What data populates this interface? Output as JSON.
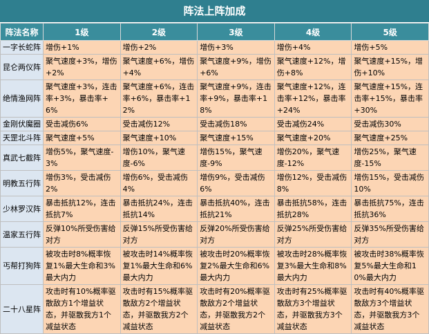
{
  "title": "阵法上阵加成",
  "table": {
    "header": [
      "阵法名称",
      "1级",
      "2级",
      "3级",
      "4级",
      "5级"
    ],
    "rows": [
      [
        "一字长蛇阵",
        "增伤+1%",
        "增伤+2%",
        "增伤+3%",
        "增伤+4%",
        "增伤+5%"
      ],
      [
        "昆仑两仪阵",
        "聚气速度+3%，增伤+2%",
        "聚气速度+6%，增伤+4%",
        "聚气速度+9%，增伤+6%",
        "聚气速度+12%，增伤+8%",
        "聚气速度+15%，增伤+10%"
      ],
      [
        "绝情渔网阵",
        "聚气速度+3%，连击率+3%，暴击率+6%",
        "聚气速度+6%，连击率+6%，暴击率+12%",
        "聚气速度+9%，连击率+9%，暴击率+18%",
        "聚气速度+12%，连击率+12%，暴击率+24%",
        "聚气速度+15%，连击率+15%，暴击率+30%"
      ],
      [
        "金刚伏魔圈",
        "受击减伤6%",
        "受击减伤12%",
        "受击减伤18%",
        "受击减伤24%",
        "受击减伤30%"
      ],
      [
        "天罡北斗阵",
        "聚气速度+5%",
        "聚气速度+10%",
        "聚气速度+15%",
        "聚气速度+20%",
        "聚气速度+25%"
      ],
      [
        "真武七截阵",
        "增伤5%，聚气速度-3%",
        "增伤10%，聚气速度-6%",
        "增伤15%，聚气速度-9%",
        "增伤20%，聚气速度-12%",
        "增伤25%，聚气速度-15%"
      ],
      [
        "明教五行阵",
        "增伤3%，受击减伤2%",
        "增伤6%，受击减伤4%",
        "增伤9%，受击减伤6%",
        "增伤12%，受击减伤8%",
        "增伤15%，受击减伤10%"
      ],
      [
        "少林罗汉阵",
        "暴击抵抗12%，连击抵抗7%",
        "暴击抵抗24%，连击抵抗14%",
        "暴击抵抗40%，连击抵抗21%",
        "暴击抵抗58%，连击抵抗28%",
        "暴击抵抗75%，连击抵抗36%"
      ],
      [
        "温家五行阵",
        "反弹10%所受伤害给对方",
        "反弹15%所受伤害给对方",
        "反弹20%所受伤害给对方",
        "反弹25%所受伤害给对方",
        "反弹35%所受伤害给对方"
      ],
      [
        "丐帮打狗阵",
        "被攻击时8%概率恢复1%最大生命和3%最大内力",
        "被攻击时14%概率恢复1%最大生命和6%最大内力",
        "被攻击时20%概率恢复2%最大生命和6%最大内力",
        "被攻击时28%概率恢复3%最大生命和8%最大内力",
        "被攻击时38%概率恢复5%最大生命和10%最大内力"
      ],
      [
        "二十八星阵",
        "攻击时有10%概率驱散敌方1个增益状态，并驱散我方1个减益状态",
        "攻击时有15%概率驱散敌方2个增益状态，并驱散我方2个减益状态",
        "攻击时有20%概率驱散敌方2个增益状态，并驱散我方2个减益状态",
        "攻击时有25%概率驱散敌方3个增益状态，并驱散我方3个减益状态",
        "攻击时有40%概率驱散敌方3个增益状态，并驱散我方3个减益状态"
      ]
    ]
  }
}
